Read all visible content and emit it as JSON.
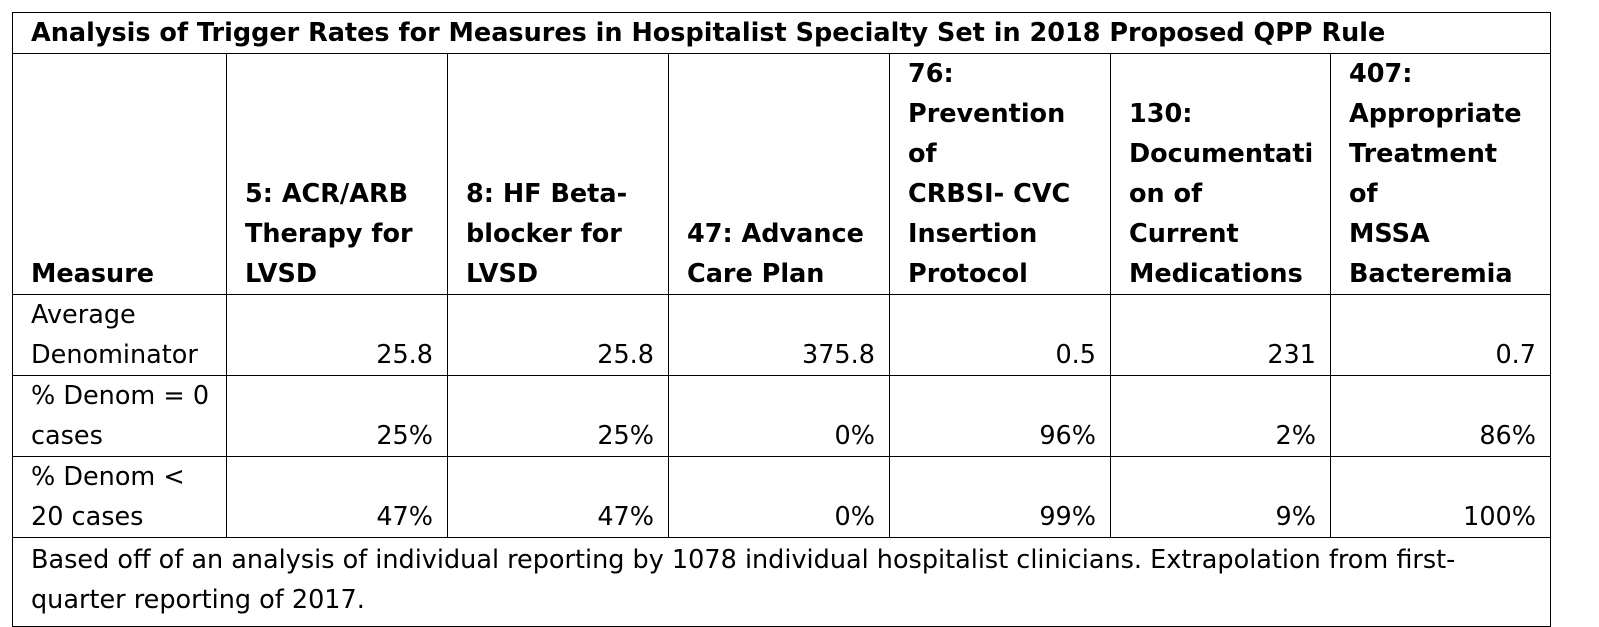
{
  "title": "Analysis of Trigger Rates for Measures in Hospitalist Specialty Set in 2018 Proposed QPP Rule",
  "header": {
    "row_label": "Measure",
    "columns": [
      "5: ACR/ARB\nTherapy for\nLVSD",
      "8: HF Beta-\nblocker for\nLVSD",
      "47: Advance\nCare Plan",
      "76:\nPrevention of\nCRBSI- CVC\nInsertion\nProtocol",
      "130:\nDocumentati\non of Current\nMedications",
      "407:\nAppropriate\nTreatment of\nMSSA\nBacteremia"
    ]
  },
  "rows": [
    {
      "label": "Average\nDenominator",
      "values": [
        "25.8",
        "25.8",
        "375.8",
        "0.5",
        "231",
        "0.7"
      ]
    },
    {
      "label": "% Denom = 0\ncases",
      "values": [
        "25%",
        "25%",
        "0%",
        "96%",
        "2%",
        "86%"
      ]
    },
    {
      "label": "% Denom <\n20 cases",
      "values": [
        "47%",
        "47%",
        "0%",
        "99%",
        "9%",
        "100%"
      ]
    }
  ],
  "footnote": "Based off of an analysis of individual reporting by 1078 individual hospitalist clinicians. Extrapolation from first-quarter reporting of 2017."
}
